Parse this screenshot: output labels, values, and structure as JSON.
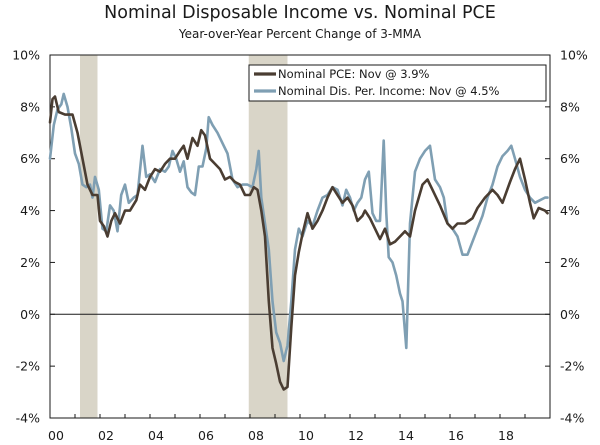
{
  "chart_data": {
    "type": "line",
    "title": "Nominal Disposable Income vs. Nominal PCE",
    "subtitle": "Year-over-Year Percent Change of 3-MMA",
    "xlabel": "",
    "ylabel": "",
    "xlim": [
      2000,
      2020
    ],
    "ylim": [
      -4,
      10
    ],
    "x_tick_values": [
      2000,
      2002,
      2004,
      2006,
      2008,
      2010,
      2012,
      2014,
      2016,
      2018
    ],
    "x_tick_labels": [
      "00",
      "02",
      "04",
      "06",
      "08",
      "10",
      "12",
      "14",
      "16",
      "18"
    ],
    "y_tick_values": [
      -4,
      -2,
      0,
      2,
      4,
      6,
      8,
      10
    ],
    "y_tick_labels": [
      "-4%",
      "-2%",
      "0%",
      "2%",
      "4%",
      "6%",
      "8%",
      "10%"
    ],
    "y_tick_labels_right": [
      "-4%",
      "-2%",
      "0%",
      "2%",
      "4%",
      "6%",
      "8%",
      "10%"
    ],
    "recessions": [
      [
        2001.2,
        2001.9
      ],
      [
        2007.95,
        2009.5
      ]
    ],
    "legend_position": "top-right",
    "colors": {
      "pce": "#4a3d32",
      "income": "#7f9fb3",
      "recession": "#d9d5c8",
      "axis": "#1a1a1a"
    },
    "series": [
      {
        "name": "Nominal PCE: Nov @ 3.9%",
        "key": "pce",
        "points": [
          [
            2000.0,
            7.4
          ],
          [
            2000.1,
            8.3
          ],
          [
            2000.2,
            8.4
          ],
          [
            2000.35,
            7.8
          ],
          [
            2000.6,
            7.7
          ],
          [
            2000.9,
            7.7
          ],
          [
            2001.1,
            7.0
          ],
          [
            2001.3,
            6.0
          ],
          [
            2001.5,
            5.0
          ],
          [
            2001.7,
            4.6
          ],
          [
            2001.9,
            4.6
          ],
          [
            2002.0,
            3.6
          ],
          [
            2002.15,
            3.4
          ],
          [
            2002.3,
            3.0
          ],
          [
            2002.45,
            3.6
          ],
          [
            2002.6,
            3.9
          ],
          [
            2002.8,
            3.5
          ],
          [
            2003.0,
            4.0
          ],
          [
            2003.2,
            4.0
          ],
          [
            2003.45,
            4.4
          ],
          [
            2003.6,
            5.0
          ],
          [
            2003.8,
            4.8
          ],
          [
            2004.0,
            5.3
          ],
          [
            2004.2,
            5.6
          ],
          [
            2004.4,
            5.5
          ],
          [
            2004.6,
            5.8
          ],
          [
            2004.8,
            6.0
          ],
          [
            2005.0,
            6.0
          ],
          [
            2005.2,
            6.3
          ],
          [
            2005.35,
            6.5
          ],
          [
            2005.5,
            6.0
          ],
          [
            2005.7,
            6.8
          ],
          [
            2005.9,
            6.5
          ],
          [
            2006.05,
            7.1
          ],
          [
            2006.2,
            6.9
          ],
          [
            2006.4,
            6.0
          ],
          [
            2006.6,
            5.8
          ],
          [
            2006.8,
            5.6
          ],
          [
            2007.0,
            5.2
          ],
          [
            2007.2,
            5.3
          ],
          [
            2007.4,
            5.1
          ],
          [
            2007.6,
            5.0
          ],
          [
            2007.8,
            4.6
          ],
          [
            2008.0,
            4.6
          ],
          [
            2008.15,
            4.9
          ],
          [
            2008.3,
            4.8
          ],
          [
            2008.45,
            4.0
          ],
          [
            2008.6,
            3.0
          ],
          [
            2008.75,
            0.5
          ],
          [
            2008.9,
            -1.3
          ],
          [
            2009.05,
            -1.9
          ],
          [
            2009.2,
            -2.6
          ],
          [
            2009.35,
            -2.9
          ],
          [
            2009.5,
            -2.8
          ],
          [
            2009.65,
            -0.5
          ],
          [
            2009.8,
            1.5
          ],
          [
            2009.95,
            2.4
          ],
          [
            2010.1,
            3.1
          ],
          [
            2010.3,
            3.9
          ],
          [
            2010.5,
            3.3
          ],
          [
            2010.7,
            3.6
          ],
          [
            2010.9,
            4.0
          ],
          [
            2011.1,
            4.5
          ],
          [
            2011.3,
            4.9
          ],
          [
            2011.5,
            4.6
          ],
          [
            2011.7,
            4.3
          ],
          [
            2011.9,
            4.5
          ],
          [
            2012.1,
            4.2
          ],
          [
            2012.3,
            3.6
          ],
          [
            2012.5,
            3.8
          ],
          [
            2012.6,
            4.0
          ],
          [
            2012.8,
            3.7
          ],
          [
            2013.0,
            3.3
          ],
          [
            2013.2,
            2.9
          ],
          [
            2013.4,
            3.3
          ],
          [
            2013.6,
            2.7
          ],
          [
            2013.8,
            2.8
          ],
          [
            2014.0,
            3.0
          ],
          [
            2014.2,
            3.2
          ],
          [
            2014.4,
            3.0
          ],
          [
            2014.6,
            4.0
          ],
          [
            2014.9,
            5.0
          ],
          [
            2015.1,
            5.2
          ],
          [
            2015.3,
            4.8
          ],
          [
            2015.6,
            4.2
          ],
          [
            2015.9,
            3.5
          ],
          [
            2016.1,
            3.3
          ],
          [
            2016.3,
            3.5
          ],
          [
            2016.6,
            3.5
          ],
          [
            2016.9,
            3.7
          ],
          [
            2017.1,
            4.1
          ],
          [
            2017.4,
            4.5
          ],
          [
            2017.7,
            4.8
          ],
          [
            2017.9,
            4.6
          ],
          [
            2018.1,
            4.3
          ],
          [
            2018.4,
            5.1
          ],
          [
            2018.6,
            5.6
          ],
          [
            2018.8,
            6.0
          ],
          [
            2019.0,
            5.2
          ],
          [
            2019.2,
            4.3
          ],
          [
            2019.35,
            3.7
          ],
          [
            2019.55,
            4.1
          ],
          [
            2019.8,
            4.0
          ],
          [
            2019.9,
            3.9
          ]
        ]
      },
      {
        "name": "Nominal Dis. Per. Income: Nov @ 4.5%",
        "key": "income",
        "points": [
          [
            2000.0,
            6.0
          ],
          [
            2000.15,
            7.3
          ],
          [
            2000.3,
            7.9
          ],
          [
            2000.45,
            8.1
          ],
          [
            2000.55,
            8.5
          ],
          [
            2000.7,
            8.0
          ],
          [
            2000.85,
            7.2
          ],
          [
            2001.0,
            6.2
          ],
          [
            2001.15,
            5.8
          ],
          [
            2001.3,
            5.0
          ],
          [
            2001.45,
            4.9
          ],
          [
            2001.6,
            5.0
          ],
          [
            2001.7,
            4.5
          ],
          [
            2001.8,
            5.3
          ],
          [
            2001.95,
            4.8
          ],
          [
            2002.1,
            3.3
          ],
          [
            2002.25,
            3.2
          ],
          [
            2002.4,
            4.2
          ],
          [
            2002.55,
            4.0
          ],
          [
            2002.7,
            3.2
          ],
          [
            2002.85,
            4.6
          ],
          [
            2003.0,
            5.0
          ],
          [
            2003.15,
            4.3
          ],
          [
            2003.35,
            4.5
          ],
          [
            2003.5,
            4.6
          ],
          [
            2003.7,
            6.5
          ],
          [
            2003.85,
            5.3
          ],
          [
            2004.0,
            5.4
          ],
          [
            2004.2,
            5.1
          ],
          [
            2004.4,
            5.6
          ],
          [
            2004.6,
            5.5
          ],
          [
            2004.75,
            5.7
          ],
          [
            2004.9,
            6.3
          ],
          [
            2005.05,
            6.0
          ],
          [
            2005.2,
            5.5
          ],
          [
            2005.35,
            5.9
          ],
          [
            2005.5,
            4.9
          ],
          [
            2005.65,
            4.7
          ],
          [
            2005.8,
            4.6
          ],
          [
            2005.95,
            5.7
          ],
          [
            2006.1,
            5.7
          ],
          [
            2006.25,
            6.4
          ],
          [
            2006.35,
            7.6
          ],
          [
            2006.5,
            7.3
          ],
          [
            2006.7,
            7.0
          ],
          [
            2006.9,
            6.6
          ],
          [
            2007.1,
            6.2
          ],
          [
            2007.3,
            5.2
          ],
          [
            2007.5,
            4.9
          ],
          [
            2007.7,
            5.0
          ],
          [
            2007.9,
            5.0
          ],
          [
            2008.1,
            4.9
          ],
          [
            2008.25,
            5.6
          ],
          [
            2008.35,
            6.3
          ],
          [
            2008.45,
            4.5
          ],
          [
            2008.6,
            3.5
          ],
          [
            2008.75,
            2.5
          ],
          [
            2008.9,
            0.5
          ],
          [
            2009.05,
            -0.7
          ],
          [
            2009.2,
            -1.1
          ],
          [
            2009.35,
            -1.8
          ],
          [
            2009.5,
            -1.2
          ],
          [
            2009.65,
            0.5
          ],
          [
            2009.8,
            2.5
          ],
          [
            2009.95,
            3.3
          ],
          [
            2010.1,
            3.0
          ],
          [
            2010.3,
            3.6
          ],
          [
            2010.5,
            3.4
          ],
          [
            2010.7,
            4.0
          ],
          [
            2010.9,
            4.5
          ],
          [
            2011.1,
            4.6
          ],
          [
            2011.3,
            4.9
          ],
          [
            2011.5,
            4.8
          ],
          [
            2011.7,
            4.2
          ],
          [
            2011.85,
            4.8
          ],
          [
            2012.0,
            4.5
          ],
          [
            2012.15,
            4.0
          ],
          [
            2012.3,
            4.3
          ],
          [
            2012.45,
            4.5
          ],
          [
            2012.6,
            5.2
          ],
          [
            2012.75,
            5.5
          ],
          [
            2012.9,
            3.9
          ],
          [
            2013.05,
            3.6
          ],
          [
            2013.2,
            3.6
          ],
          [
            2013.35,
            6.7
          ],
          [
            2013.45,
            3.9
          ],
          [
            2013.55,
            2.2
          ],
          [
            2013.7,
            2.0
          ],
          [
            2013.85,
            1.5
          ],
          [
            2014.0,
            0.8
          ],
          [
            2014.1,
            0.5
          ],
          [
            2014.25,
            -1.3
          ],
          [
            2014.4,
            3.5
          ],
          [
            2014.6,
            5.5
          ],
          [
            2014.8,
            6.0
          ],
          [
            2015.0,
            6.3
          ],
          [
            2015.2,
            6.5
          ],
          [
            2015.4,
            5.2
          ],
          [
            2015.6,
            4.9
          ],
          [
            2015.75,
            4.5
          ],
          [
            2015.9,
            3.5
          ],
          [
            2016.1,
            3.3
          ],
          [
            2016.3,
            3.0
          ],
          [
            2016.5,
            2.3
          ],
          [
            2016.7,
            2.3
          ],
          [
            2016.9,
            2.8
          ],
          [
            2017.1,
            3.3
          ],
          [
            2017.3,
            3.8
          ],
          [
            2017.5,
            4.5
          ],
          [
            2017.7,
            5.0
          ],
          [
            2017.9,
            5.7
          ],
          [
            2018.1,
            6.1
          ],
          [
            2018.3,
            6.3
          ],
          [
            2018.45,
            6.5
          ],
          [
            2018.6,
            6.0
          ],
          [
            2018.8,
            5.3
          ],
          [
            2019.0,
            4.8
          ],
          [
            2019.2,
            4.5
          ],
          [
            2019.4,
            4.3
          ],
          [
            2019.6,
            4.4
          ],
          [
            2019.8,
            4.5
          ],
          [
            2019.9,
            4.5
          ]
        ]
      }
    ]
  }
}
